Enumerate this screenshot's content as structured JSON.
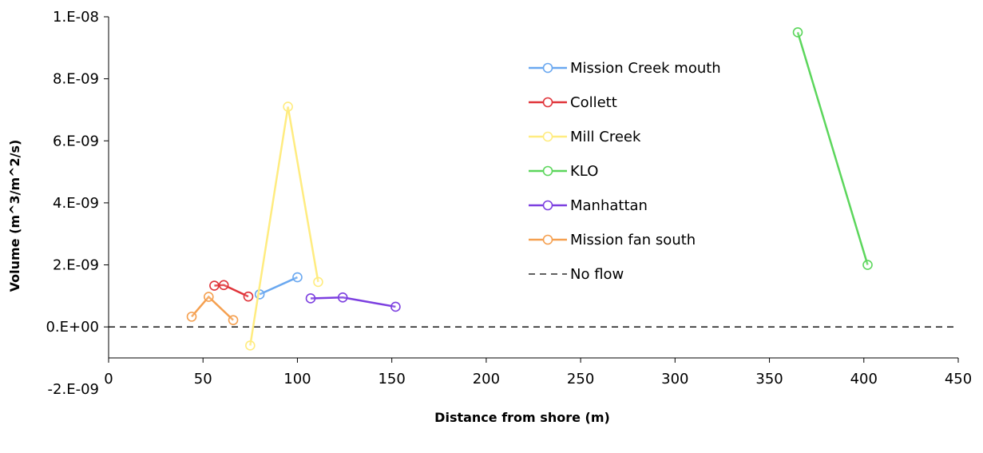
{
  "chart_data": {
    "type": "line",
    "title": "",
    "xlabel": "Distance  from shore (m)",
    "ylabel": "Volume (m^3/m^2/s)",
    "xlim": [
      0,
      450
    ],
    "ylim": [
      -1e-09,
      1e-08
    ],
    "x_ticks": [
      "0",
      "50",
      "100",
      "150",
      "200",
      "250",
      "300",
      "350",
      "400",
      "450"
    ],
    "y_ticks": [
      {
        "value": 1e-08,
        "label": "1.E-08"
      },
      {
        "value": 8e-09,
        "label": "8.E-09"
      },
      {
        "value": 6e-09,
        "label": "6.E-09"
      },
      {
        "value": 4e-09,
        "label": "4.E-09"
      },
      {
        "value": 2e-09,
        "label": "2.E-09"
      },
      {
        "value": 0,
        "label": "0.E+00"
      },
      {
        "value": -2e-09,
        "label": "-2.E-09"
      }
    ],
    "grid": false,
    "legend_position": "top-right",
    "series": [
      {
        "name": "Mission Creek mouth",
        "color": "#6aa8f0",
        "x": [
          80,
          100
        ],
        "y": [
          1.05e-09,
          1.6e-09
        ]
      },
      {
        "name": "Collett",
        "color": "#e0343a",
        "x": [
          56,
          61,
          74
        ],
        "y": [
          1.33e-09,
          1.35e-09,
          9.8e-10
        ]
      },
      {
        "name": "Mill Creek",
        "color": "#ffec80",
        "x": [
          75,
          95,
          111
        ],
        "y": [
          -6e-10,
          7.1e-09,
          1.45e-09
        ]
      },
      {
        "name": "KLO",
        "color": "#5cd65c",
        "x": [
          365,
          402
        ],
        "y": [
          9.5e-09,
          2e-09
        ]
      },
      {
        "name": "Manhattan",
        "color": "#7c3fe0",
        "x": [
          107,
          124,
          152
        ],
        "y": [
          9.2e-10,
          9.5e-10,
          6.5e-10
        ]
      },
      {
        "name": "Mission fan south",
        "color": "#f5a050",
        "x": [
          44,
          53,
          66
        ],
        "y": [
          3.3e-10,
          9.7e-10,
          2.2e-10
        ]
      }
    ],
    "reference_line": {
      "name": "No flow",
      "y": 0,
      "style": "dashed",
      "color": "#000000"
    }
  }
}
